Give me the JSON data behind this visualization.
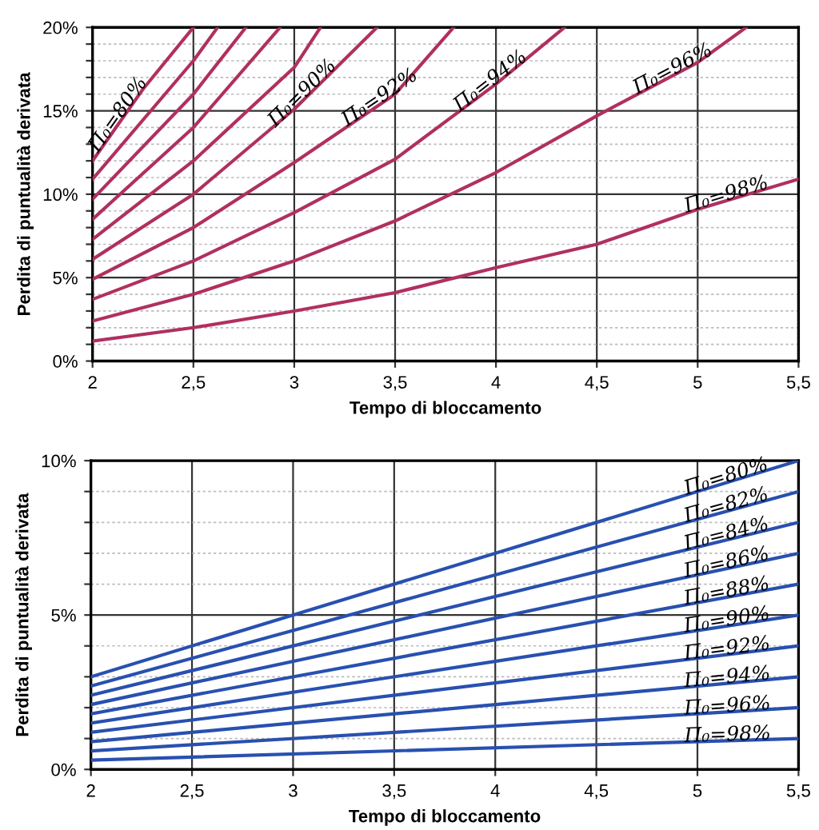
{
  "chart_data": [
    {
      "type": "line",
      "xlabel": "Tempo di bloccamento",
      "ylabel": "Perdita di puntualità derivata",
      "xlim": [
        2,
        5.5
      ],
      "ylim": [
        0,
        20
      ],
      "grid": true,
      "xticks": [
        {
          "value": 2,
          "label": "2"
        },
        {
          "value": 2.5,
          "label": "2,5"
        },
        {
          "value": 3,
          "label": "3"
        },
        {
          "value": 3.5,
          "label": "3,5"
        },
        {
          "value": 4,
          "label": "4"
        },
        {
          "value": 4.5,
          "label": "4,5"
        },
        {
          "value": 5,
          "label": "5"
        },
        {
          "value": 5.5,
          "label": "5,5"
        }
      ],
      "yticks": [
        {
          "value": 0,
          "label": "0%"
        },
        {
          "value": 1,
          "label": null
        },
        {
          "value": 2,
          "label": null
        },
        {
          "value": 3,
          "label": null
        },
        {
          "value": 4,
          "label": null
        },
        {
          "value": 5,
          "label": "5%"
        },
        {
          "value": 6,
          "label": null
        },
        {
          "value": 7,
          "label": null
        },
        {
          "value": 8,
          "label": null
        },
        {
          "value": 9,
          "label": null
        },
        {
          "value": 10,
          "label": "10%"
        },
        {
          "value": 11,
          "label": null
        },
        {
          "value": 12,
          "label": null
        },
        {
          "value": 13,
          "label": null
        },
        {
          "value": 14,
          "label": null
        },
        {
          "value": 15,
          "label": "15%"
        },
        {
          "value": 16,
          "label": null
        },
        {
          "value": 17,
          "label": null
        },
        {
          "value": 18,
          "label": null
        },
        {
          "value": 19,
          "label": null
        },
        {
          "value": 20,
          "label": "20%"
        }
      ],
      "series": [
        {
          "name": "Π₀=80%",
          "color": "#b03060",
          "x": [
            2,
            2.25,
            2.5
          ],
          "values": [
            12.0,
            16.3,
            20.0
          ]
        },
        {
          "color": "#b03060",
          "x": [
            2,
            2.5,
            2.62
          ],
          "values": [
            10.9,
            18.0,
            20.0
          ]
        },
        {
          "color": "#b03060",
          "x": [
            2,
            2.5,
            2.76
          ],
          "values": [
            9.7,
            16.0,
            20.0
          ]
        },
        {
          "color": "#b03060",
          "x": [
            2,
            2.5,
            2.93
          ],
          "values": [
            8.5,
            14.0,
            20.0
          ]
        },
        {
          "color": "#b03060",
          "x": [
            2,
            2.5,
            3,
            3.13
          ],
          "values": [
            7.3,
            12.0,
            17.6,
            20.0
          ]
        },
        {
          "name": "Π₀=90%",
          "color": "#b03060",
          "x": [
            2,
            2.5,
            3,
            3.41
          ],
          "values": [
            6.1,
            10.0,
            15.1,
            20.0
          ]
        },
        {
          "name": "Π₀=92%",
          "color": "#b03060",
          "x": [
            2,
            2.5,
            3,
            3.5,
            3.79
          ],
          "values": [
            4.9,
            8.0,
            11.9,
            16.0,
            20.0
          ]
        },
        {
          "name": "Π₀=94%",
          "color": "#b03060",
          "x": [
            2,
            2.5,
            3,
            3.5,
            4,
            4.34
          ],
          "values": [
            3.7,
            6.0,
            8.9,
            12.1,
            16.6,
            20.0
          ]
        },
        {
          "name": "Π₀=96%",
          "color": "#b03060",
          "x": [
            2,
            2.5,
            3,
            3.5,
            4,
            4.5,
            5,
            5.24
          ],
          "values": [
            2.4,
            4.0,
            6.0,
            8.4,
            11.3,
            14.7,
            17.9,
            20.0
          ]
        },
        {
          "name": "Π₀=98%",
          "color": "#b03060",
          "x": [
            2,
            2.5,
            3,
            3.5,
            4,
            4.5,
            5,
            5.5
          ],
          "values": [
            1.2,
            2.0,
            3.0,
            4.1,
            5.6,
            7.0,
            9.1,
            10.9
          ]
        }
      ]
    },
    {
      "type": "line",
      "xlabel": "Tempo di bloccamento",
      "ylabel": "Perdita di puntualità derivata",
      "xlim": [
        2,
        5.5
      ],
      "ylim": [
        0,
        10
      ],
      "grid": true,
      "xticks": [
        {
          "value": 2,
          "label": "2"
        },
        {
          "value": 2.5,
          "label": "2,5"
        },
        {
          "value": 3,
          "label": "3"
        },
        {
          "value": 3.5,
          "label": "3,5"
        },
        {
          "value": 4,
          "label": "4"
        },
        {
          "value": 4.5,
          "label": "4,5"
        },
        {
          "value": 5,
          "label": "5"
        },
        {
          "value": 5.5,
          "label": "5,5"
        }
      ],
      "yticks": [
        {
          "value": 0,
          "label": "0%"
        },
        {
          "value": 1,
          "label": null
        },
        {
          "value": 2,
          "label": null
        },
        {
          "value": 3,
          "label": null
        },
        {
          "value": 4,
          "label": null
        },
        {
          "value": 5,
          "label": "5%"
        },
        {
          "value": 6,
          "label": null
        },
        {
          "value": 7,
          "label": null
        },
        {
          "value": 8,
          "label": null
        },
        {
          "value": 9,
          "label": null
        },
        {
          "value": 10,
          "label": "10%"
        }
      ],
      "series": [
        {
          "name": "Π₀=80%",
          "color": "#2850b0",
          "x": [
            2,
            5.5
          ],
          "values": [
            3.0,
            10.0
          ]
        },
        {
          "name": "Π₀=82%",
          "color": "#2850b0",
          "x": [
            2,
            5.5
          ],
          "values": [
            2.7,
            9.0
          ]
        },
        {
          "name": "Π₀=84%",
          "color": "#2850b0",
          "x": [
            2,
            5.5
          ],
          "values": [
            2.4,
            8.0
          ]
        },
        {
          "name": "Π₀=86%",
          "color": "#2850b0",
          "x": [
            2,
            5.5
          ],
          "values": [
            2.1,
            7.0
          ]
        },
        {
          "name": "Π₀=88%",
          "color": "#2850b0",
          "x": [
            2,
            5.5
          ],
          "values": [
            1.8,
            6.0
          ]
        },
        {
          "name": "Π₀=90%",
          "color": "#2850b0",
          "x": [
            2,
            5.5
          ],
          "values": [
            1.5,
            5.0
          ]
        },
        {
          "name": "Π₀=92%",
          "color": "#2850b0",
          "x": [
            2,
            5.5
          ],
          "values": [
            1.2,
            4.0
          ]
        },
        {
          "name": "Π₀=94%",
          "color": "#2850b0",
          "x": [
            2,
            5.5
          ],
          "values": [
            0.9,
            3.0
          ]
        },
        {
          "name": "Π₀=96%",
          "color": "#2850b0",
          "x": [
            2,
            5.5
          ],
          "values": [
            0.6,
            2.0
          ]
        },
        {
          "name": "Π₀=98%",
          "color": "#2850b0",
          "x": [
            2,
            5.5
          ],
          "values": [
            0.3,
            1.0
          ]
        }
      ]
    }
  ]
}
